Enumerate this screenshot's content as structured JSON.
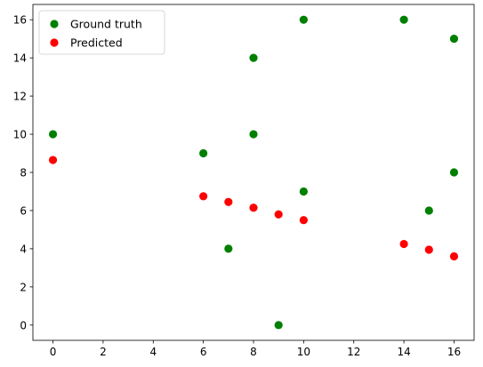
{
  "chart_data": {
    "type": "scatter",
    "title": "",
    "xlabel": "",
    "ylabel": "",
    "xlim": [
      -0.8,
      16.8
    ],
    "ylim": [
      -0.8,
      16.8
    ],
    "xticks": [
      0,
      2,
      4,
      6,
      8,
      10,
      12,
      14,
      16
    ],
    "yticks": [
      0,
      2,
      4,
      6,
      8,
      10,
      12,
      14,
      16
    ],
    "grid": false,
    "legend_position": "top-left",
    "series": [
      {
        "name": "Ground truth",
        "color": "#008000",
        "points": [
          {
            "x": 0,
            "y": 10
          },
          {
            "x": 6,
            "y": 9
          },
          {
            "x": 7,
            "y": 4
          },
          {
            "x": 8,
            "y": 14
          },
          {
            "x": 8,
            "y": 10
          },
          {
            "x": 9,
            "y": 0
          },
          {
            "x": 10,
            "y": 16
          },
          {
            "x": 10,
            "y": 7
          },
          {
            "x": 14,
            "y": 16
          },
          {
            "x": 15,
            "y": 6
          },
          {
            "x": 16,
            "y": 15
          },
          {
            "x": 16,
            "y": 8
          }
        ]
      },
      {
        "name": "Predicted",
        "color": "#ff0000",
        "points": [
          {
            "x": 0,
            "y": 8.65
          },
          {
            "x": 6,
            "y": 6.75
          },
          {
            "x": 7,
            "y": 6.45
          },
          {
            "x": 8,
            "y": 6.15
          },
          {
            "x": 9,
            "y": 5.8
          },
          {
            "x": 10,
            "y": 5.5
          },
          {
            "x": 14,
            "y": 4.25
          },
          {
            "x": 15,
            "y": 3.95
          },
          {
            "x": 16,
            "y": 3.6
          }
        ]
      }
    ]
  }
}
